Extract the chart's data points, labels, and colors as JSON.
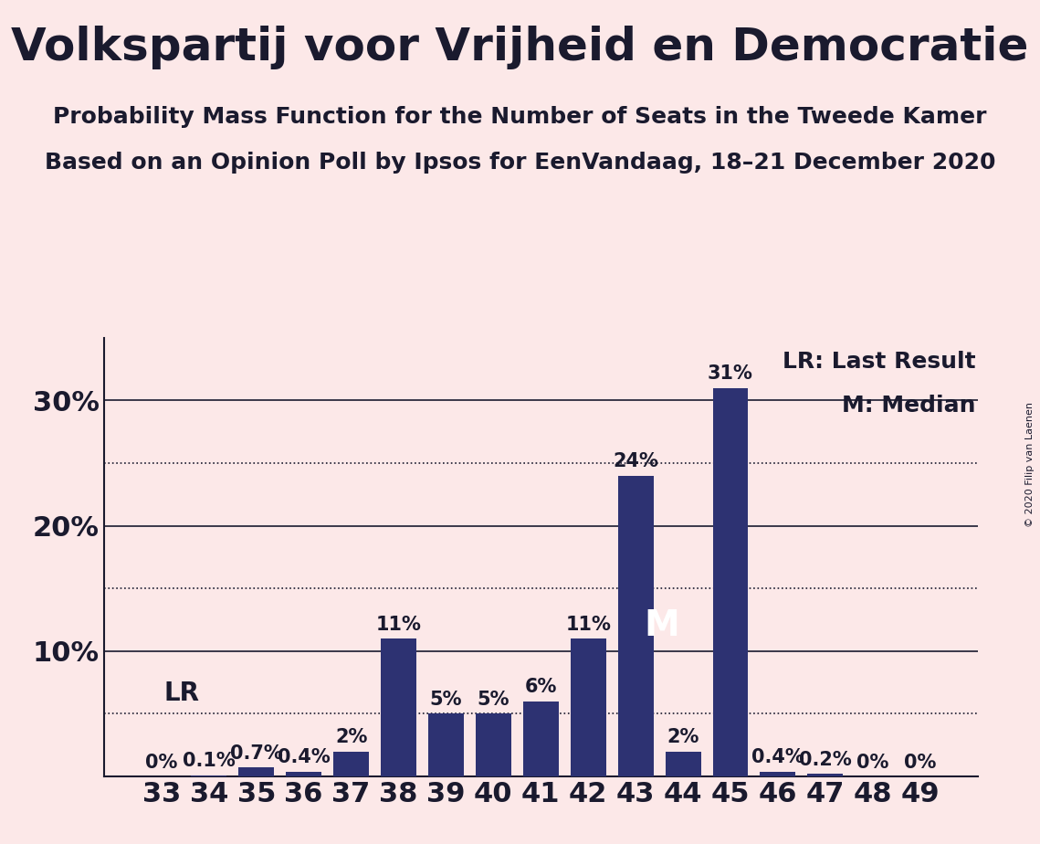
{
  "title": "Volkspartij voor Vrijheid en Democratie",
  "subtitle1": "Probability Mass Function for the Number of Seats in the Tweede Kamer",
  "subtitle2": "Based on an Opinion Poll by Ipsos for EenVandaag, 18–21 December 2020",
  "copyright": "© 2020 Filip van Laenen",
  "categories": [
    33,
    34,
    35,
    36,
    37,
    38,
    39,
    40,
    41,
    42,
    43,
    44,
    45,
    46,
    47,
    48,
    49
  ],
  "values": [
    0.0,
    0.1,
    0.7,
    0.4,
    2.0,
    11.0,
    5.0,
    5.0,
    6.0,
    11.0,
    24.0,
    2.0,
    31.0,
    0.4,
    0.2,
    0.0,
    0.0
  ],
  "labels": [
    "0%",
    "0.1%",
    "0.7%",
    "0.4%",
    "2%",
    "11%",
    "5%",
    "5%",
    "6%",
    "11%",
    "24%",
    "2%",
    "31%",
    "0.4%",
    "0.2%",
    "0%",
    "0%"
  ],
  "bar_color": "#2d3272",
  "background_color": "#fce8e8",
  "text_color": "#1a1a2e",
  "lr_seat": 33,
  "median_seat": 43,
  "yticks": [
    10,
    20,
    30
  ],
  "ytick_labels": [
    "10%",
    "20%",
    "30%"
  ],
  "dotted_lines": [
    5,
    15,
    25
  ],
  "solid_lines": [
    10,
    20,
    30
  ],
  "ylim": [
    0,
    35
  ],
  "legend_lr": "LR: Last Result",
  "legend_m": "M: Median",
  "title_fontsize": 36,
  "subtitle_fontsize": 18,
  "axis_fontsize": 22,
  "bar_label_fontsize": 15,
  "legend_fontsize": 18
}
